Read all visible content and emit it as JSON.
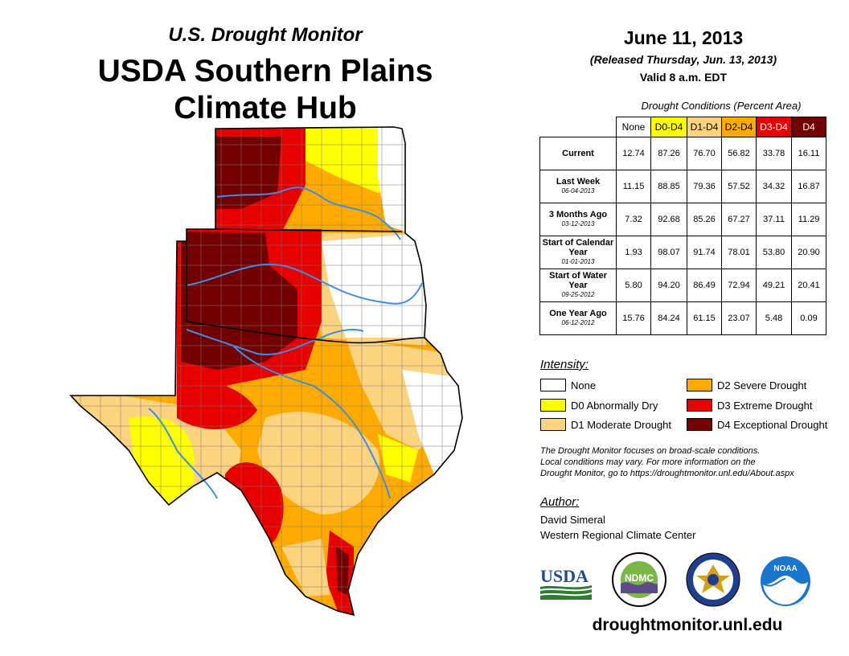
{
  "header": {
    "subtitle": "U.S. Drought Monitor",
    "title_line1": "USDA Southern Plains",
    "title_line2": "Climate Hub"
  },
  "dates": {
    "map_date": "June 11, 2013",
    "released": "(Released Thursday, Jun. 13, 2013)",
    "valid": "Valid 8 a.m. EDT"
  },
  "table": {
    "caption": "Drought Conditions (Percent Area)",
    "columns": [
      {
        "label": "None",
        "color": "#ffffff",
        "text_color": "#000000"
      },
      {
        "label": "D0-D4",
        "color": "#ffff00",
        "text_color": "#000000"
      },
      {
        "label": "D1-D4",
        "color": "#fcd37f",
        "text_color": "#000000"
      },
      {
        "label": "D2-D4",
        "color": "#ffaa00",
        "text_color": "#000000"
      },
      {
        "label": "D3-D4",
        "color": "#e60000",
        "text_color": "#ffffff"
      },
      {
        "label": "D4",
        "color": "#730000",
        "text_color": "#ffffff"
      }
    ],
    "rows": [
      {
        "label": "Current",
        "date": "",
        "values": [
          "12.74",
          "87.26",
          "76.70",
          "56.82",
          "33.78",
          "16.11"
        ]
      },
      {
        "label": "Last Week",
        "date": "06-04-2013",
        "values": [
          "11.15",
          "88.85",
          "79.36",
          "57.52",
          "34.32",
          "16.87"
        ]
      },
      {
        "label": "3 Months Ago",
        "date": "03-12-2013",
        "values": [
          "7.32",
          "92.68",
          "85.26",
          "67.27",
          "37.11",
          "11.29"
        ]
      },
      {
        "label": "Start of Calendar Year",
        "date": "01-01-2013",
        "values": [
          "1.93",
          "98.07",
          "91.74",
          "78.01",
          "53.80",
          "20.90"
        ]
      },
      {
        "label": "Start of Water Year",
        "date": "09-25-2012",
        "values": [
          "5.80",
          "94.20",
          "86.49",
          "72.94",
          "49.21",
          "20.41"
        ]
      },
      {
        "label": "One Year Ago",
        "date": "06-12-2012",
        "values": [
          "15.76",
          "84.24",
          "61.15",
          "23.07",
          "5.48",
          "0.09"
        ]
      }
    ]
  },
  "legend": {
    "title": "Intensity:",
    "items": [
      {
        "label": "None",
        "color": "#ffffff"
      },
      {
        "label": "D0 Abnormally Dry",
        "color": "#ffff00"
      },
      {
        "label": "D1 Moderate Drought",
        "color": "#fcd37f"
      },
      {
        "label": "D2 Severe Drought",
        "color": "#ffaa00"
      },
      {
        "label": "D3 Extreme Drought",
        "color": "#e60000"
      },
      {
        "label": "D4 Exceptional Drought",
        "color": "#730000"
      }
    ]
  },
  "note": {
    "line1": "The Drought Monitor focuses on broad-scale conditions.",
    "line2": "Local conditions may vary. For more information on the",
    "line3": "Drought Monitor, go to https://droughtmonitor.unl.edu/About.aspx"
  },
  "author": {
    "heading": "Author:",
    "name": "David Simeral",
    "org": "Western Regional Climate Center"
  },
  "logos": {
    "usda": "USDA",
    "ndmc": "NDMC",
    "noaa": "NOAA"
  },
  "footer": {
    "url": "droughtmonitor.unl.edu"
  },
  "map_colors": {
    "none": "#ffffff",
    "d0": "#ffff00",
    "d1": "#fcd37f",
    "d2": "#ffaa00",
    "d3": "#e60000",
    "d4": "#730000",
    "river": "#3a8ee6"
  }
}
